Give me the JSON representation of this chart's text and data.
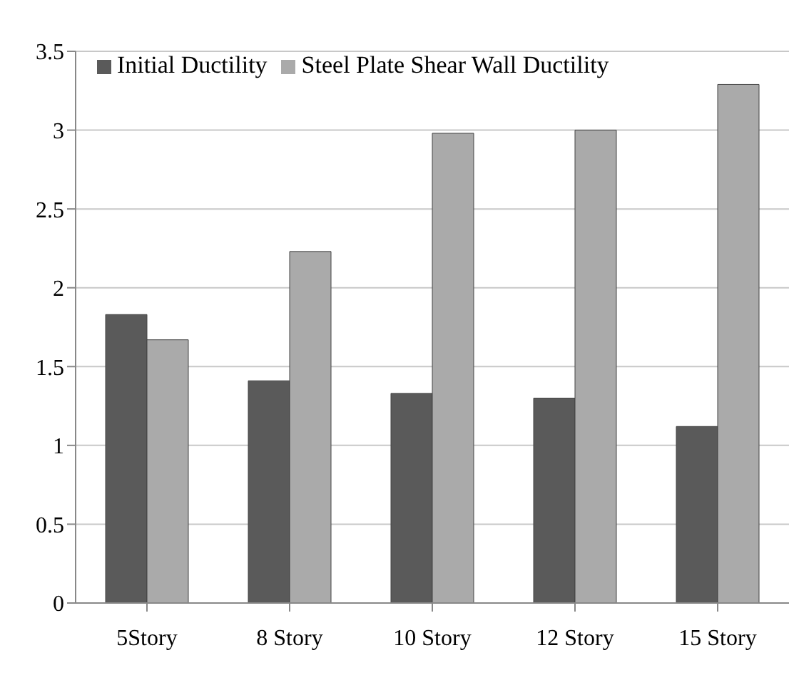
{
  "chart_data": {
    "type": "bar",
    "categories": [
      "5Story",
      "8 Story",
      "10 Story",
      "12 Story",
      "15 Story"
    ],
    "series": [
      {
        "name": "Initial Ductility",
        "color": "#5a5a5a",
        "values": [
          1.83,
          1.41,
          1.33,
          1.3,
          1.12
        ]
      },
      {
        "name": "Steel Plate Shear Wall Ductility",
        "color": "#aaaaaa",
        "values": [
          1.67,
          2.23,
          2.98,
          3.0,
          3.29
        ]
      }
    ],
    "ylim": [
      0,
      3.5
    ],
    "yticks": [
      0,
      0.5,
      1,
      1.5,
      2,
      2.5,
      3,
      3.5
    ],
    "grid": "y",
    "legend": "top left"
  }
}
